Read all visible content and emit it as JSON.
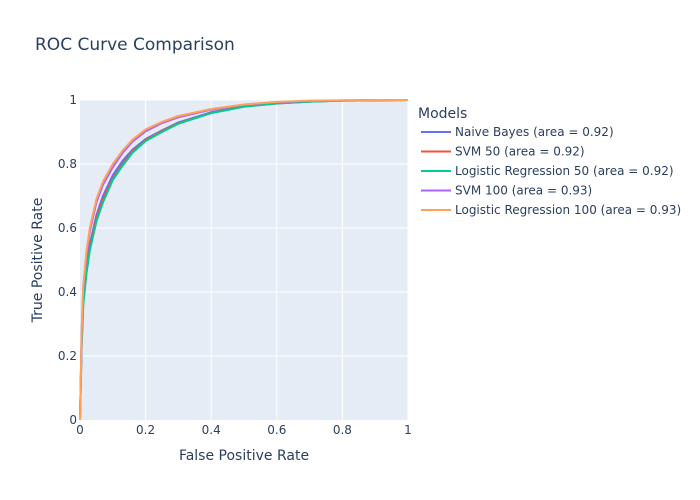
{
  "chart_data": {
    "type": "line",
    "title": "ROC Curve Comparison",
    "xlabel": "False Positive Rate",
    "ylabel": "True Positive Rate",
    "xlim": [
      0,
      1
    ],
    "ylim": [
      0,
      1
    ],
    "x_ticks": [
      "0",
      "0.2",
      "0.4",
      "0.6",
      "0.8",
      "1"
    ],
    "y_ticks": [
      "0",
      "0.2",
      "0.4",
      "0.6",
      "0.8",
      "1"
    ],
    "grid": true,
    "legend": {
      "title": "Models",
      "placement": "right"
    },
    "series": [
      {
        "name": "Naive Bayes (area = 0.92)",
        "color": "#636efa",
        "x": [
          0,
          0.005,
          0.01,
          0.02,
          0.03,
          0.05,
          0.07,
          0.1,
          0.13,
          0.16,
          0.2,
          0.25,
          0.3,
          0.4,
          0.5,
          0.6,
          0.7,
          0.8,
          0.9,
          1
        ],
        "y": [
          0,
          0.25,
          0.38,
          0.48,
          0.55,
          0.64,
          0.7,
          0.765,
          0.81,
          0.845,
          0.878,
          0.905,
          0.93,
          0.962,
          0.981,
          0.99,
          0.995,
          0.998,
          0.999,
          1
        ]
      },
      {
        "name": "SVM 50 (area = 0.92)",
        "color": "#ef553b",
        "x": [
          0,
          0.005,
          0.01,
          0.02,
          0.03,
          0.05,
          0.07,
          0.1,
          0.13,
          0.16,
          0.2,
          0.25,
          0.3,
          0.4,
          0.5,
          0.6,
          0.7,
          0.8,
          0.9,
          1
        ],
        "y": [
          0,
          0.24,
          0.37,
          0.47,
          0.54,
          0.63,
          0.69,
          0.755,
          0.8,
          0.84,
          0.875,
          0.903,
          0.928,
          0.96,
          0.98,
          0.989,
          0.995,
          0.998,
          0.999,
          1
        ]
      },
      {
        "name": "Logistic Regression 50 (area = 0.92)",
        "color": "#00cc96",
        "x": [
          0,
          0.005,
          0.01,
          0.02,
          0.03,
          0.05,
          0.07,
          0.1,
          0.13,
          0.16,
          0.2,
          0.25,
          0.3,
          0.4,
          0.5,
          0.6,
          0.7,
          0.8,
          0.9,
          1
        ],
        "y": [
          0,
          0.23,
          0.36,
          0.46,
          0.53,
          0.62,
          0.68,
          0.75,
          0.795,
          0.835,
          0.872,
          0.9,
          0.926,
          0.959,
          0.979,
          0.989,
          0.995,
          0.998,
          0.999,
          1
        ]
      },
      {
        "name": "SVM 100 (area = 0.93)",
        "color": "#ab63fa",
        "x": [
          0,
          0.005,
          0.01,
          0.02,
          0.03,
          0.05,
          0.07,
          0.1,
          0.13,
          0.16,
          0.2,
          0.25,
          0.3,
          0.4,
          0.5,
          0.6,
          0.7,
          0.8,
          0.9,
          1
        ],
        "y": [
          0,
          0.27,
          0.41,
          0.52,
          0.59,
          0.68,
          0.735,
          0.79,
          0.835,
          0.87,
          0.902,
          0.928,
          0.946,
          0.97,
          0.985,
          0.993,
          0.997,
          0.999,
          1,
          1
        ]
      },
      {
        "name": "Logistic Regression 100 (area = 0.93)",
        "color": "#ffa15a",
        "x": [
          0,
          0.005,
          0.01,
          0.02,
          0.03,
          0.05,
          0.07,
          0.1,
          0.13,
          0.16,
          0.2,
          0.25,
          0.3,
          0.4,
          0.5,
          0.6,
          0.7,
          0.8,
          0.9,
          1
        ],
        "y": [
          0,
          0.28,
          0.42,
          0.53,
          0.6,
          0.69,
          0.745,
          0.8,
          0.842,
          0.876,
          0.908,
          0.932,
          0.95,
          0.972,
          0.986,
          0.994,
          0.998,
          0.999,
          1,
          1
        ]
      }
    ]
  }
}
